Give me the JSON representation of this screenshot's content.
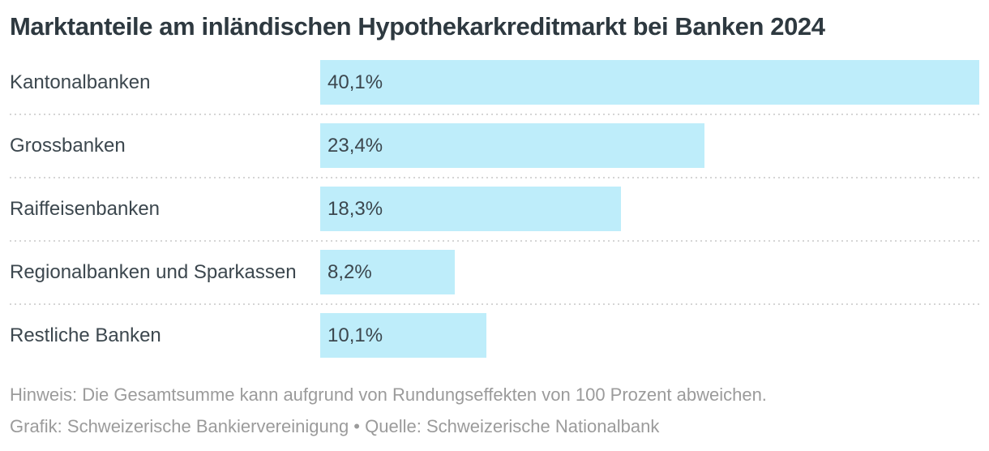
{
  "title": "Marktanteile am inländischen Hypothekarkreditmarkt bei Banken 2024",
  "chart_data": {
    "type": "bar",
    "orientation": "horizontal",
    "title": "Marktanteile am inländischen Hypothekarkreditmarkt bei Banken 2024",
    "categories": [
      "Kantonalbanken",
      "Grossbanken",
      "Raiffeisenbanken",
      "Regionalbanken und Sparkassen",
      "Restliche Banken"
    ],
    "values": [
      40.1,
      23.4,
      18.3,
      8.2,
      10.1
    ],
    "value_labels": [
      "40,1%",
      "23,4%",
      "18,3%",
      "8,2%",
      "10,1%"
    ],
    "value_unit": "%",
    "xlabel": "",
    "ylabel": "",
    "xlim": [
      0,
      40.1
    ],
    "grid": false,
    "legend": false,
    "value_label_position": "inside-left"
  },
  "footer": {
    "note": "Hinweis: Die Gesamtsumme kann aufgrund von Rundungseffekten von 100 Prozent abweichen.",
    "credit": "Grafik: Schweizerische Bankiervereinigung • Quelle: Schweizerische Nationalbank"
  },
  "colors": {
    "bar": "#beedfa",
    "title_text": "#2e3940",
    "label_text": "#3c474e",
    "footer_text": "#9b9b9b",
    "separator": "#d5d5d5",
    "background": "#ffffff"
  }
}
